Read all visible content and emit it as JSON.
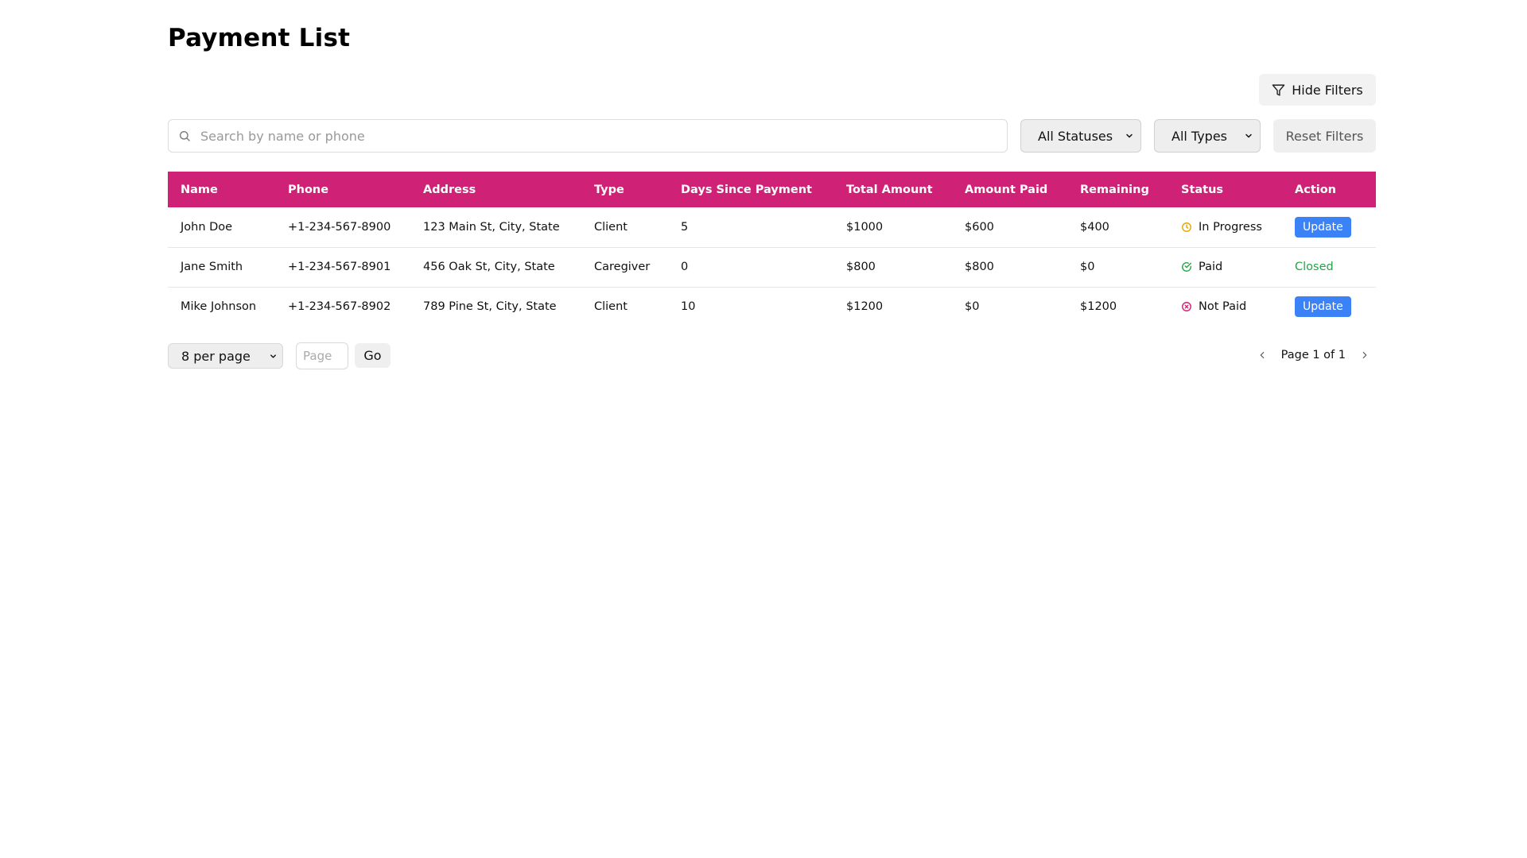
{
  "page": {
    "title": "Payment List"
  },
  "toolbar": {
    "hide_filters_label": "Hide Filters"
  },
  "filters": {
    "search_placeholder": "Search by name or phone",
    "search_value": "",
    "status_selected": "All Statuses",
    "type_selected": "All Types",
    "reset_label": "Reset Filters"
  },
  "table": {
    "headers": [
      "Name",
      "Phone",
      "Address",
      "Type",
      "Days Since Payment",
      "Total Amount",
      "Amount Paid",
      "Remaining",
      "Status",
      "Action"
    ],
    "rows": [
      {
        "name": "John Doe",
        "phone": "+1-234-567-8900",
        "address": "123 Main St, City, State",
        "type": "Client",
        "days": "5",
        "total": "$1000",
        "paid": "$600",
        "remaining": "$400",
        "status": "In Progress",
        "status_icon": "clock-icon",
        "status_color": "#e6a700",
        "action": "Update",
        "action_kind": "button"
      },
      {
        "name": "Jane Smith",
        "phone": "+1-234-567-8901",
        "address": "456 Oak St, City, State",
        "type": "Caregiver",
        "days": "0",
        "total": "$800",
        "paid": "$800",
        "remaining": "$0",
        "status": "Paid",
        "status_icon": "check-circle-icon",
        "status_color": "#22a447",
        "action": "Closed",
        "action_kind": "text"
      },
      {
        "name": "Mike Johnson",
        "phone": "+1-234-567-8902",
        "address": "789 Pine St, City, State",
        "type": "Client",
        "days": "10",
        "total": "$1200",
        "paid": "$0",
        "remaining": "$1200",
        "status": "Not Paid",
        "status_icon": "x-circle-icon",
        "status_color": "#cf2276",
        "action": "Update",
        "action_kind": "button"
      }
    ]
  },
  "pagination": {
    "per_page_selected": "8 per page",
    "page_input_placeholder": "Page",
    "go_label": "Go",
    "page_info": "Page 1 of 1"
  },
  "colors": {
    "header_bg": "#cf2276",
    "update_button": "#3b82f6",
    "closed_text": "#22a447"
  }
}
